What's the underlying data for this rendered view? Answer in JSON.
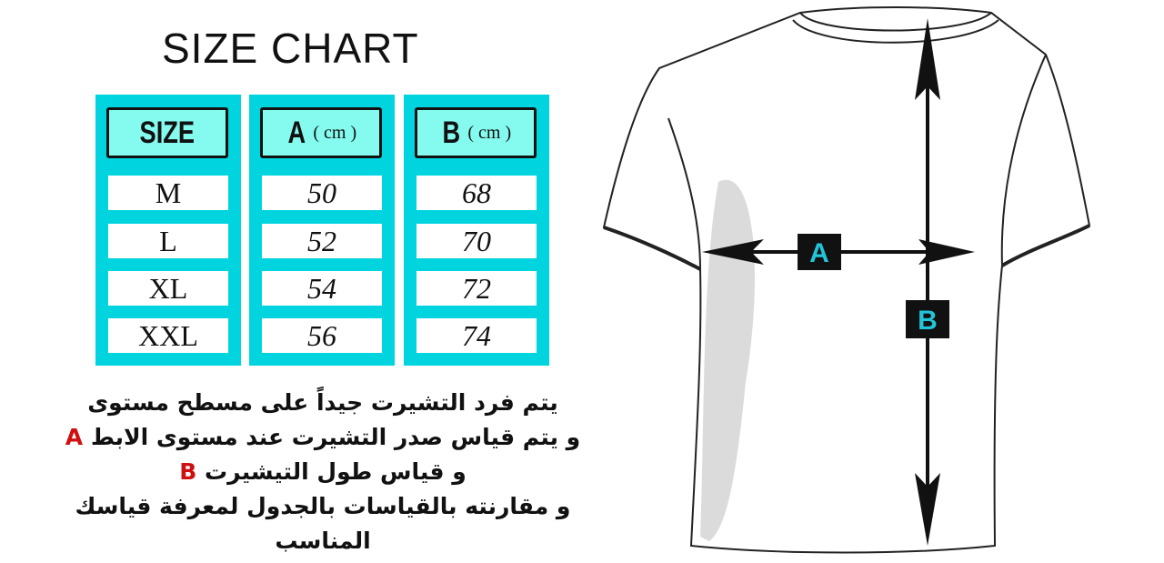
{
  "title": "SIZE CHART",
  "table": {
    "headers": [
      {
        "label": "SIZE",
        "unit": ""
      },
      {
        "label": "A",
        "unit": "( cm )"
      },
      {
        "label": "B",
        "unit": "( cm )"
      }
    ],
    "rows": [
      {
        "size": "M",
        "a": "50",
        "b": "68"
      },
      {
        "size": "L",
        "a": "52",
        "b": "70"
      },
      {
        "size": "XL",
        "a": "54",
        "b": "72"
      },
      {
        "size": "XXL",
        "a": "56",
        "b": "74"
      }
    ]
  },
  "notes": [
    {
      "text": "يتم فرد التشيرت جيداً على مسطح مستوى",
      "marker": ""
    },
    {
      "text": "و يتم قياس صدر التشيرت عند مستوى الابط",
      "marker": "A"
    },
    {
      "text": "و قياس طول التيشيرت",
      "marker": "B"
    },
    {
      "text": "و مقارنته بالقياسات بالجدول لمعرفة قياسك المناسب",
      "marker": ""
    }
  ],
  "diagram": {
    "label_a": "A",
    "label_b": "B"
  },
  "colors": {
    "table_cyan": "#00d4df",
    "header_cyan": "#85fbef",
    "marker_red": "#d01010",
    "label_cyan": "#22c5d8"
  }
}
